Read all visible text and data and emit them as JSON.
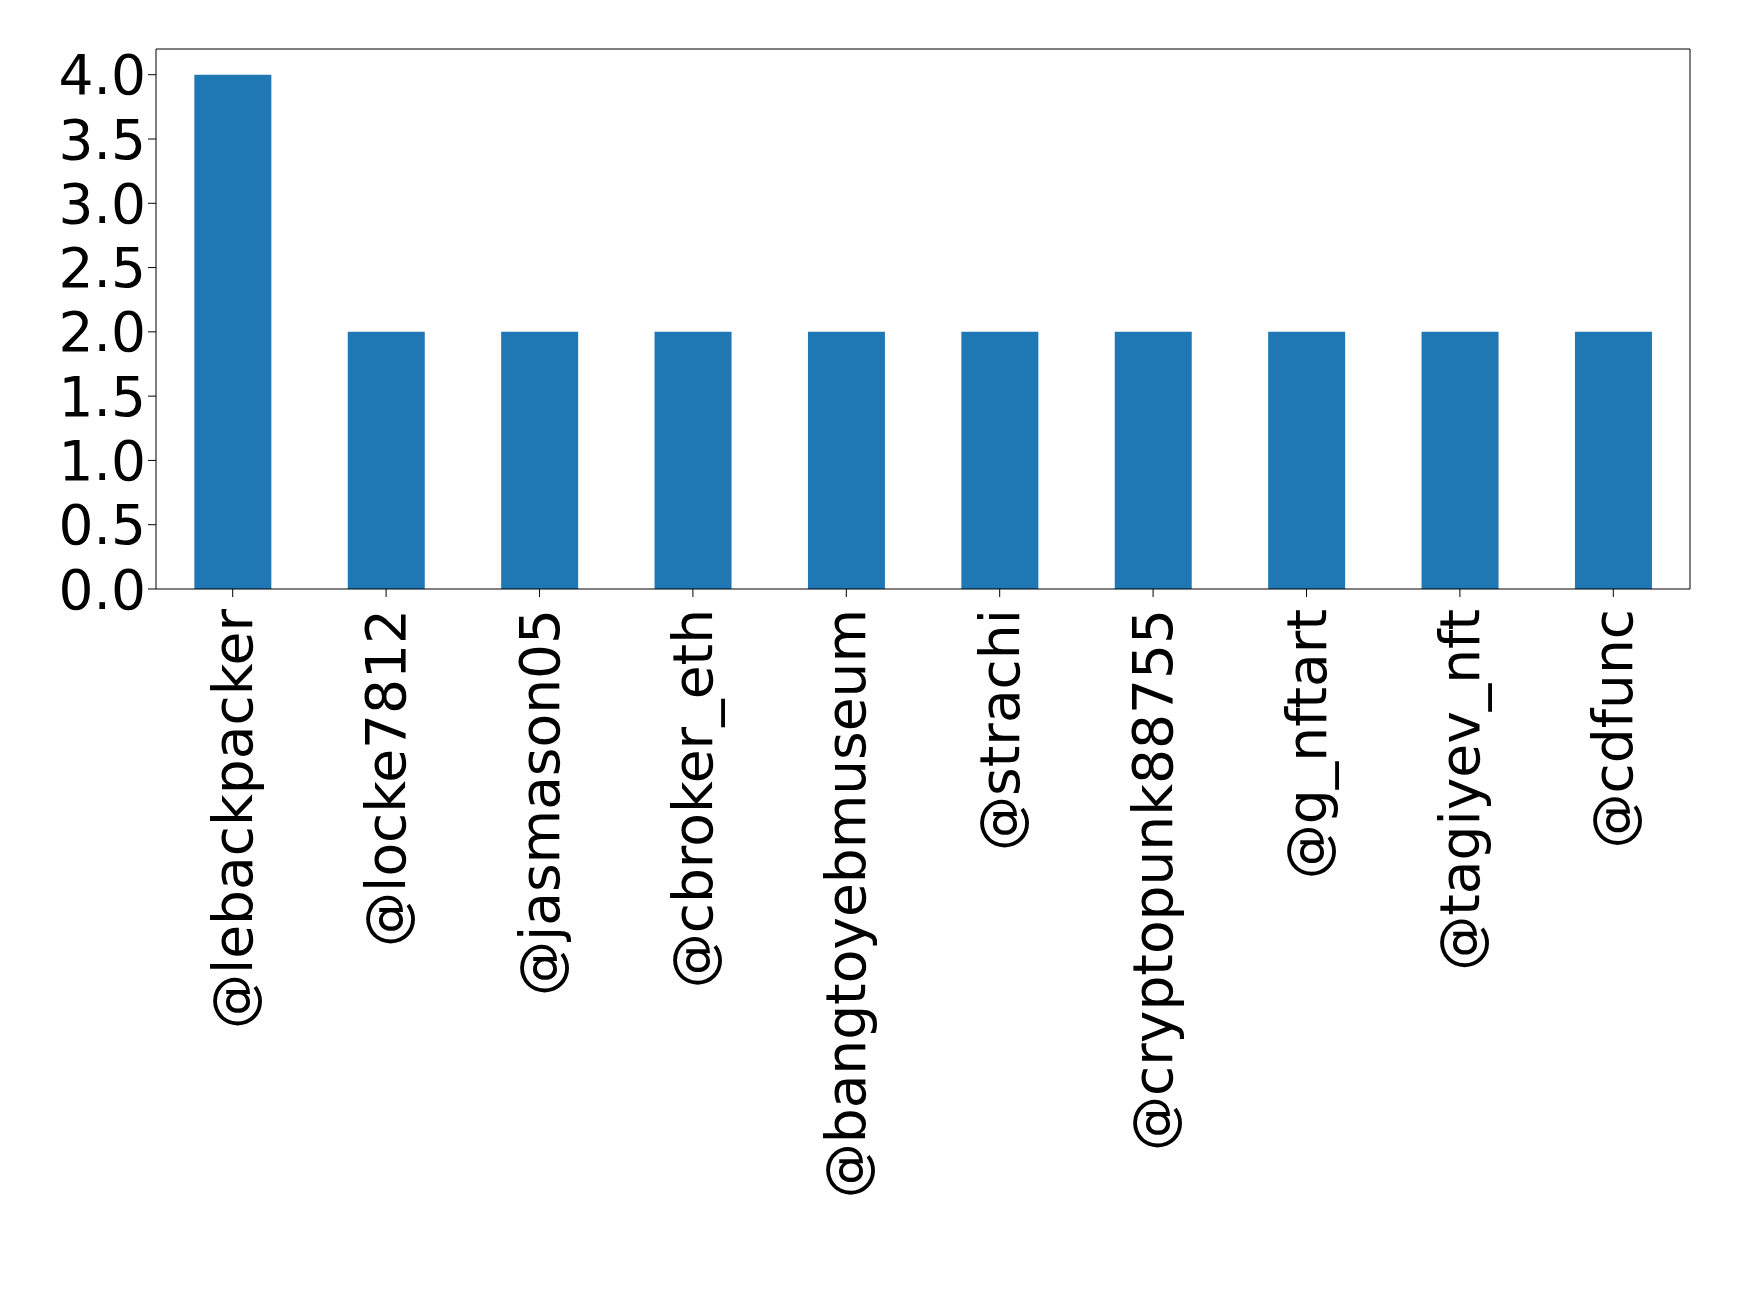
{
  "chart_data": {
    "type": "bar",
    "categories": [
      "@lebackpacker",
      "@locke7812",
      "@jasmason05",
      "@cbroker_eth",
      "@bangtoyebmuseum",
      "@strachi",
      "@cryptopunk88755",
      "@g_nftart",
      "@tagiyev_nft",
      "@cdfunc"
    ],
    "values": [
      4,
      2,
      2,
      2,
      2,
      2,
      2,
      2,
      2,
      2
    ],
    "color": "#1f77b4",
    "ylim": [
      0,
      4.2
    ],
    "yticks": [
      {
        "value": 0,
        "label": "0.0"
      },
      0.5,
      {
        "value": 1,
        "label": "1.0"
      },
      1.5,
      {
        "value": 2,
        "label": "2.0"
      },
      2.5,
      {
        "value": 3,
        "label": "3.0"
      },
      3.5,
      {
        "value": 4,
        "label": "4.0"
      }
    ]
  }
}
